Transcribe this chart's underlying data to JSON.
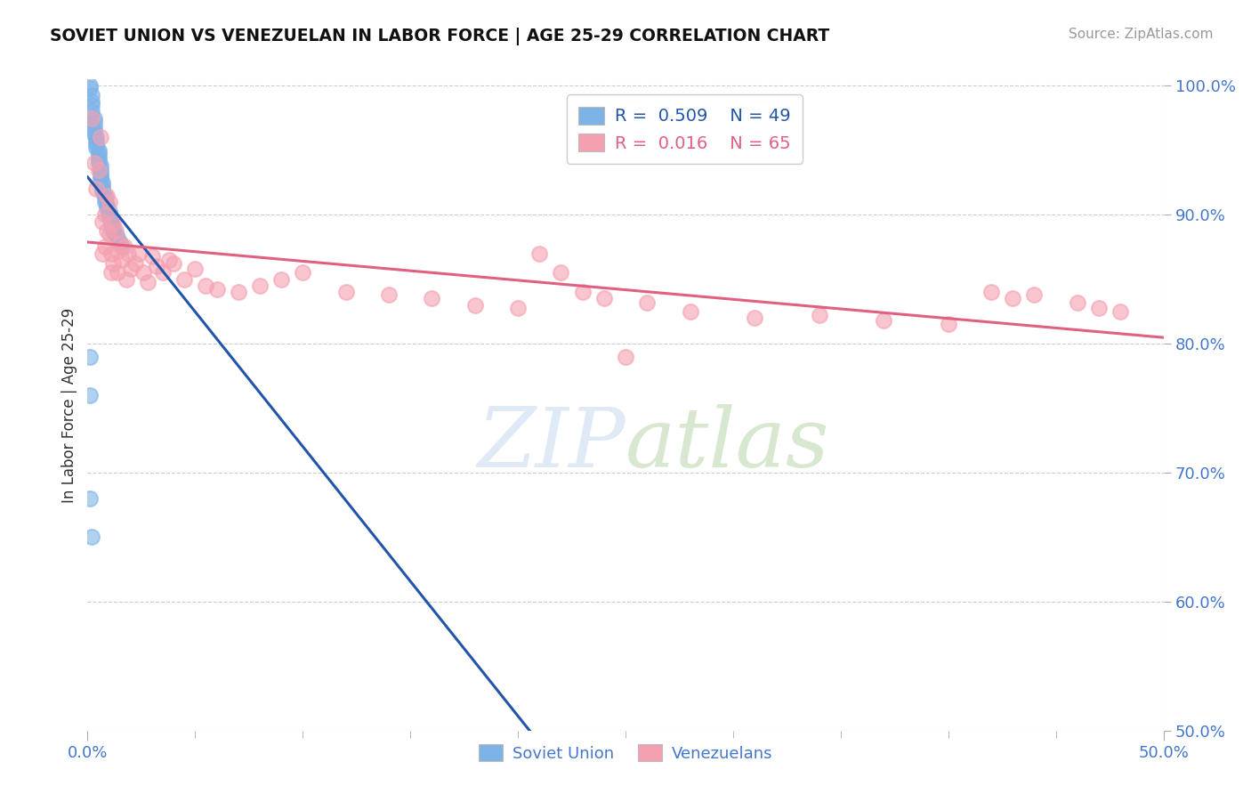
{
  "title": "SOVIET UNION VS VENEZUELAN IN LABOR FORCE | AGE 25-29 CORRELATION CHART",
  "source": "Source: ZipAtlas.com",
  "ylabel": "In Labor Force | Age 25-29",
  "xlim": [
    0.0,
    0.5
  ],
  "ylim": [
    0.5,
    1.005
  ],
  "background_color": "#ffffff",
  "soviet_color": "#7eb3e8",
  "venezuelan_color": "#f5a0b0",
  "soviet_line_color": "#2255aa",
  "venezuelan_line_color": "#e06080",
  "grid_color": "#cccccc",
  "R_soviet": 0.509,
  "N_soviet": 49,
  "R_venezuelan": 0.016,
  "N_venezuelan": 65,
  "watermark_zip": "ZIP",
  "watermark_atlas": "atlas",
  "watermark_color_zip": "#c5d8f0",
  "watermark_color_atlas": "#b0c8a0",
  "tick_color": "#4477cc",
  "label_color": "#333333",
  "soviet_x": [
    0.001,
    0.001,
    0.002,
    0.002,
    0.002,
    0.002,
    0.003,
    0.003,
    0.003,
    0.003,
    0.003,
    0.004,
    0.004,
    0.004,
    0.004,
    0.005,
    0.005,
    0.005,
    0.005,
    0.005,
    0.006,
    0.006,
    0.006,
    0.006,
    0.006,
    0.007,
    0.007,
    0.007,
    0.007,
    0.008,
    0.008,
    0.008,
    0.009,
    0.009,
    0.01,
    0.01,
    0.01,
    0.011,
    0.011,
    0.012,
    0.012,
    0.013,
    0.014,
    0.015,
    0.016,
    0.001,
    0.001,
    0.001,
    0.002
  ],
  "soviet_y": [
    1.0,
    0.998,
    0.993,
    0.988,
    0.985,
    0.98,
    0.975,
    0.972,
    0.968,
    0.965,
    0.962,
    0.96,
    0.957,
    0.955,
    0.952,
    0.95,
    0.948,
    0.945,
    0.942,
    0.94,
    0.938,
    0.935,
    0.932,
    0.93,
    0.928,
    0.925,
    0.922,
    0.92,
    0.918,
    0.915,
    0.913,
    0.91,
    0.908,
    0.905,
    0.902,
    0.9,
    0.898,
    0.895,
    0.892,
    0.89,
    0.887,
    0.885,
    0.882,
    0.878,
    0.875,
    0.79,
    0.76,
    0.68,
    0.65
  ],
  "venezuelan_x": [
    0.002,
    0.003,
    0.004,
    0.005,
    0.006,
    0.007,
    0.007,
    0.008,
    0.008,
    0.009,
    0.009,
    0.01,
    0.01,
    0.011,
    0.011,
    0.012,
    0.012,
    0.013,
    0.014,
    0.014,
    0.015,
    0.016,
    0.017,
    0.018,
    0.019,
    0.02,
    0.022,
    0.024,
    0.026,
    0.028,
    0.03,
    0.032,
    0.035,
    0.038,
    0.04,
    0.045,
    0.05,
    0.055,
    0.06,
    0.07,
    0.08,
    0.09,
    0.1,
    0.12,
    0.14,
    0.16,
    0.18,
    0.2,
    0.21,
    0.22,
    0.23,
    0.24,
    0.26,
    0.28,
    0.31,
    0.34,
    0.37,
    0.4,
    0.25,
    0.42,
    0.43,
    0.44,
    0.46,
    0.47,
    0.48
  ],
  "venezuelan_y": [
    0.975,
    0.94,
    0.92,
    0.935,
    0.96,
    0.895,
    0.87,
    0.9,
    0.875,
    0.915,
    0.888,
    0.91,
    0.885,
    0.87,
    0.855,
    0.893,
    0.862,
    0.888,
    0.872,
    0.855,
    0.878,
    0.865,
    0.875,
    0.85,
    0.87,
    0.858,
    0.862,
    0.87,
    0.855,
    0.848,
    0.868,
    0.86,
    0.855,
    0.865,
    0.862,
    0.85,
    0.858,
    0.845,
    0.842,
    0.84,
    0.845,
    0.85,
    0.855,
    0.84,
    0.838,
    0.835,
    0.83,
    0.828,
    0.87,
    0.855,
    0.84,
    0.835,
    0.832,
    0.825,
    0.82,
    0.822,
    0.818,
    0.815,
    0.79,
    0.84,
    0.835,
    0.838,
    0.832,
    0.828,
    0.825
  ]
}
